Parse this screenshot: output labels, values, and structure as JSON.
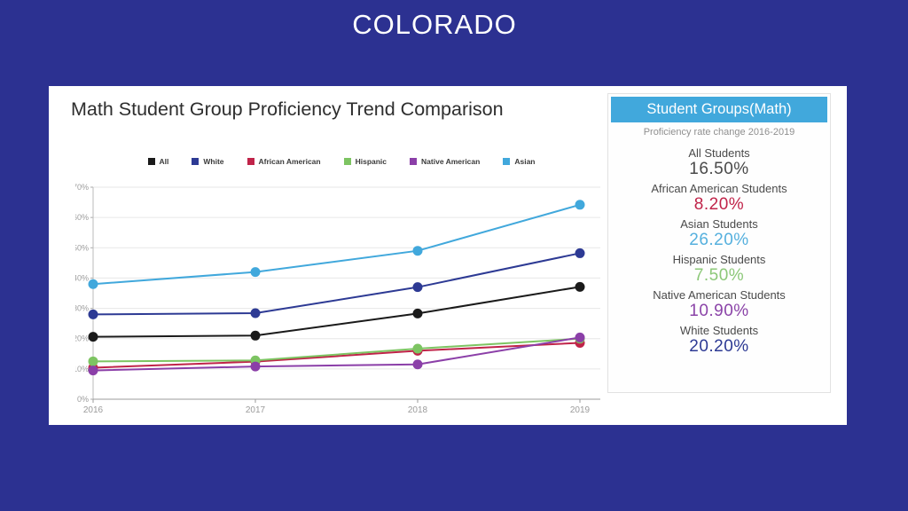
{
  "page": {
    "title": "COLORADO",
    "background": "#2c3191"
  },
  "card": {
    "heading": "Math Student Group Proficiency Trend Comparison"
  },
  "chart_data": {
    "type": "line",
    "title": "Math Student Group Proficiency Trend Comparison",
    "x": [
      2016,
      2017,
      2018,
      2019
    ],
    "xticks": [
      "2016",
      "2017",
      "2018",
      "2019"
    ],
    "yticks": [
      "0%",
      "10%",
      "20%",
      "30%",
      "40%",
      "50%",
      "60%",
      "70%"
    ],
    "ylim": [
      0,
      70
    ],
    "ytick_step": 10,
    "grid": true,
    "legend_position": "top",
    "series": [
      {
        "name": "All",
        "color": "#1a1a1a",
        "values": [
          20.6,
          21.0,
          28.3,
          37.1
        ]
      },
      {
        "name": "White",
        "color": "#2d3a94",
        "values": [
          28.0,
          28.4,
          37.0,
          48.2
        ]
      },
      {
        "name": "African American",
        "color": "#c02349",
        "values": [
          10.4,
          12.4,
          16.0,
          18.6
        ]
      },
      {
        "name": "Hispanic",
        "color": "#7dc462",
        "values": [
          12.5,
          12.8,
          16.7,
          20.0
        ]
      },
      {
        "name": "Native American",
        "color": "#8b3fa8",
        "values": [
          9.5,
          10.8,
          11.5,
          20.4
        ]
      },
      {
        "name": "Asian",
        "color": "#41a8dc",
        "values": [
          38.0,
          42.0,
          49.0,
          64.2
        ]
      }
    ]
  },
  "panel": {
    "header": "Student Groups(Math)",
    "header_bg": "#41a8dc",
    "subtitle": "Proficiency rate change 2016-2019",
    "rows": [
      {
        "label": "All Students",
        "value": "16.50%",
        "color": "#4a4a4a"
      },
      {
        "label": "African American Students",
        "value": "8.20%",
        "color": "#c02349"
      },
      {
        "label": "Asian Students",
        "value": "26.20%",
        "color": "#55b0de"
      },
      {
        "label": "Hispanic Students",
        "value": "7.50%",
        "color": "#8cc878"
      },
      {
        "label": "Native American Students",
        "value": "10.90%",
        "color": "#8b44a8"
      },
      {
        "label": "White Students",
        "value": "20.20%",
        "color": "#2d3a94"
      }
    ]
  }
}
